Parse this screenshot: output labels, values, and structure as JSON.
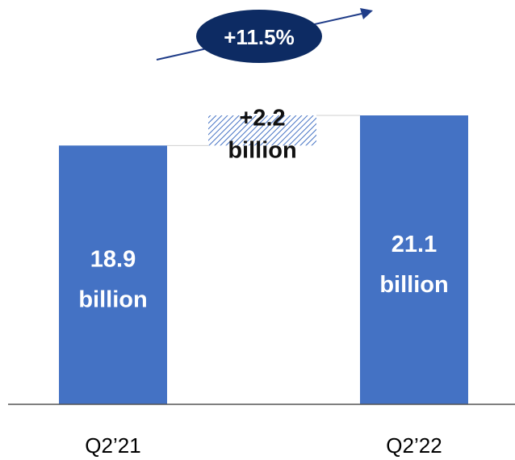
{
  "chart_data": {
    "type": "bar",
    "categories": [
      "Q2’21",
      "Q2’22"
    ],
    "values": [
      18.9,
      21.1
    ],
    "bar_labels": [
      {
        "value": "18.9",
        "unit": "billion"
      },
      {
        "value": "21.1",
        "unit": "billion"
      }
    ],
    "change": {
      "value": 2.2,
      "line1": "+2.2",
      "line2": "billion"
    },
    "growth_label": "+11.5%",
    "colors": {
      "bar": "#4472c4",
      "growth_badge": "#0d2b63",
      "arrow": "#1f3c88",
      "hatch": "#4472c4",
      "connector": "#cfcfcf",
      "baseline": "#555555"
    }
  }
}
